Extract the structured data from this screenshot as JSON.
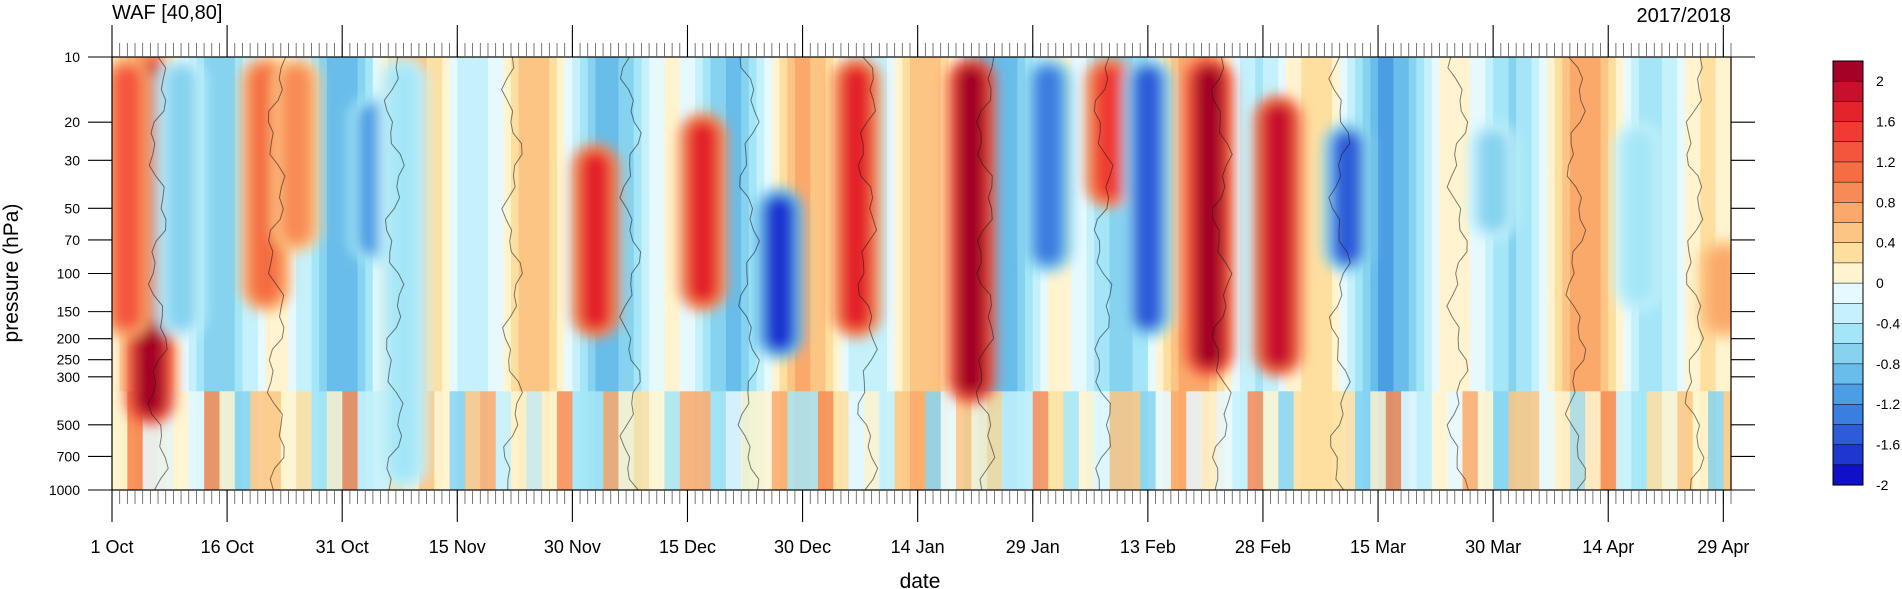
{
  "chart_data": {
    "type": "heatmap",
    "title": "WAF [40,80]",
    "subtitle": "2017/2018",
    "xlabel": "date",
    "ylabel": "pressure (hPa)",
    "x_ticks": [
      "1 Oct",
      "16 Oct",
      "31 Oct",
      "15 Nov",
      "30 Nov",
      "15 Dec",
      "30 Dec",
      "14 Jan",
      "29 Jan",
      "13 Feb",
      "28 Feb",
      "15 Mar",
      "30 Mar",
      "14 Apr",
      "29 Apr"
    ],
    "y_ticks": [
      "10",
      "20",
      "30",
      "50",
      "70",
      "100",
      "150",
      "200",
      "250",
      "300",
      "500",
      "700",
      "1000"
    ],
    "y_tick_values": [
      10,
      20,
      30,
      50,
      70,
      100,
      150,
      200,
      250,
      300,
      500,
      700,
      1000
    ],
    "y_scale": "log",
    "y_inverted": true,
    "colorbar": {
      "labels": [
        "2",
        "1.6",
        "1.2",
        "0.8",
        "0.4",
        "0",
        "-0.4",
        "-0.8",
        "-1.2",
        "-1.6",
        "-2"
      ],
      "levels": [
        2,
        1.8,
        1.6,
        1.4,
        1.2,
        1.0,
        0.8,
        0.6,
        0.4,
        0.2,
        0,
        -0.2,
        -0.4,
        -0.6,
        -0.8,
        -1.0,
        -1.2,
        -1.4,
        -1.6,
        -1.8,
        -2
      ],
      "colors": [
        "#a50026",
        "#c8102e",
        "#e3242b",
        "#ef3b32",
        "#f4563d",
        "#f46d43",
        "#f88b55",
        "#fba96b",
        "#fdc583",
        "#fedfa0",
        "#fff4cf",
        "#e6f9ff",
        "#c4f1fb",
        "#a4e6f7",
        "#86d3f0",
        "#68bdea",
        "#4c9ee4",
        "#3a7ee0",
        "#2d5bd9",
        "#1f36d1",
        "#1010c9"
      ]
    },
    "features": [
      {
        "date": 5,
        "p_top": 10,
        "p_bot": 500,
        "value": 2.0
      },
      {
        "date": 2,
        "p_top": 10,
        "p_bot": 200,
        "value": 1.2
      },
      {
        "date": 9,
        "p_top": 10,
        "p_bot": 200,
        "value": -0.8
      },
      {
        "date": 20,
        "p_top": 10,
        "p_bot": 150,
        "value": 1.0
      },
      {
        "date": 24,
        "p_top": 10,
        "p_bot": 80,
        "value": 0.8
      },
      {
        "date": 34,
        "p_top": 15,
        "p_bot": 90,
        "value": -1.2
      },
      {
        "date": 38,
        "p_top": 10,
        "p_bot": 1000,
        "value": -0.6
      },
      {
        "date": 63,
        "p_top": 25,
        "p_bot": 200,
        "value": 1.6
      },
      {
        "date": 77,
        "p_top": 18,
        "p_bot": 150,
        "value": 1.6
      },
      {
        "date": 87,
        "p_top": 40,
        "p_bot": 250,
        "value": -1.8
      },
      {
        "date": 97,
        "p_top": 10,
        "p_bot": 200,
        "value": 1.6
      },
      {
        "date": 112,
        "p_top": 10,
        "p_bot": 400,
        "value": 2.0
      },
      {
        "date": 122,
        "p_top": 10,
        "p_bot": 100,
        "value": -1.4
      },
      {
        "date": 130,
        "p_top": 10,
        "p_bot": 50,
        "value": 1.4
      },
      {
        "date": 135,
        "p_top": 10,
        "p_bot": 200,
        "value": -1.6
      },
      {
        "date": 143,
        "p_top": 10,
        "p_bot": 300,
        "value": 2.0
      },
      {
        "date": 152,
        "p_top": 15,
        "p_bot": 300,
        "value": 1.8
      },
      {
        "date": 161,
        "p_top": 20,
        "p_bot": 100,
        "value": -1.6
      },
      {
        "date": 180,
        "p_top": 20,
        "p_bot": 70,
        "value": -0.8
      },
      {
        "date": 199,
        "p_top": 20,
        "p_bot": 150,
        "value": -0.6
      },
      {
        "date": 210,
        "p_top": 70,
        "p_bot": 200,
        "value": 0.6
      }
    ]
  }
}
